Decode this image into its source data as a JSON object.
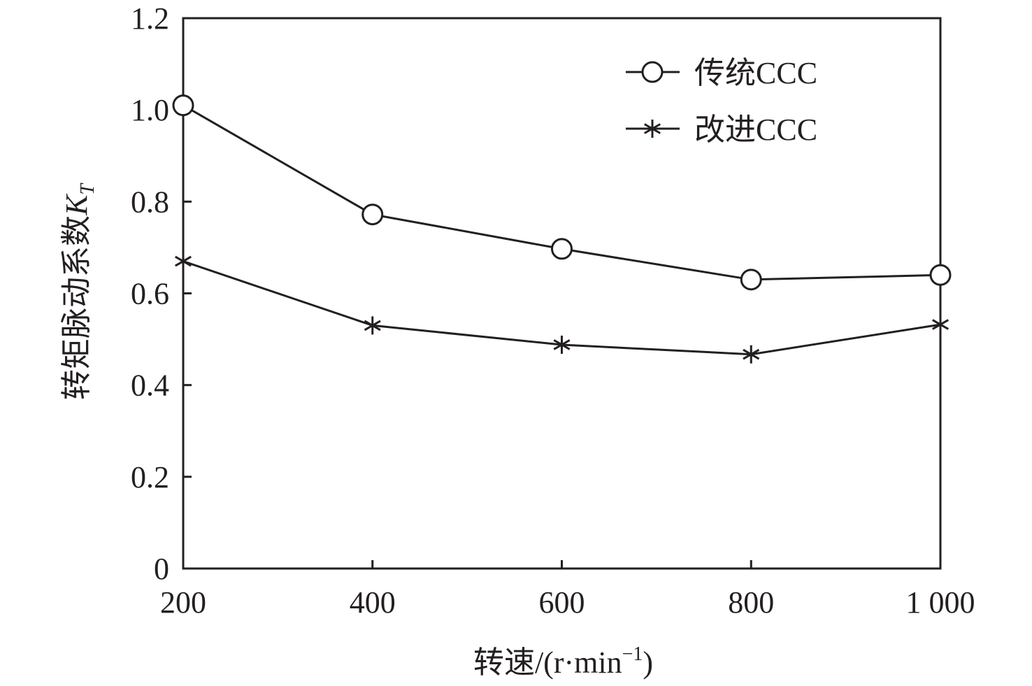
{
  "chart_data": {
    "type": "line",
    "x": [
      200,
      400,
      600,
      800,
      1000
    ],
    "x_tick_labels": [
      "200",
      "400",
      "600",
      "800",
      "1 000"
    ],
    "xlim": [
      200,
      1000
    ],
    "y_tick_labels": [
      "0",
      "0.2",
      "0.4",
      "0.6",
      "0.8",
      "1.0",
      "1.2"
    ],
    "y_ticks": [
      0,
      0.2,
      0.4,
      0.6,
      0.8,
      1.0,
      1.2
    ],
    "ylim": [
      0,
      1.2
    ],
    "xlabel_main": "转速/(r·min",
    "xlabel_sup": "−1",
    "xlabel_close": ")",
    "ylabel_main": "转矩脉动系数",
    "ylabel_var": "K",
    "ylabel_sub": "T",
    "grid": false,
    "legend_position": "top-right",
    "series": [
      {
        "name": "传统CCC",
        "marker": "circle",
        "values": [
          1.01,
          0.772,
          0.697,
          0.63,
          0.64
        ]
      },
      {
        "name": "改进CCC",
        "marker": "asterisk",
        "values": [
          0.67,
          0.53,
          0.488,
          0.467,
          0.532
        ]
      }
    ],
    "colors": {
      "ink": "#231f20",
      "background": "#ffffff"
    }
  }
}
